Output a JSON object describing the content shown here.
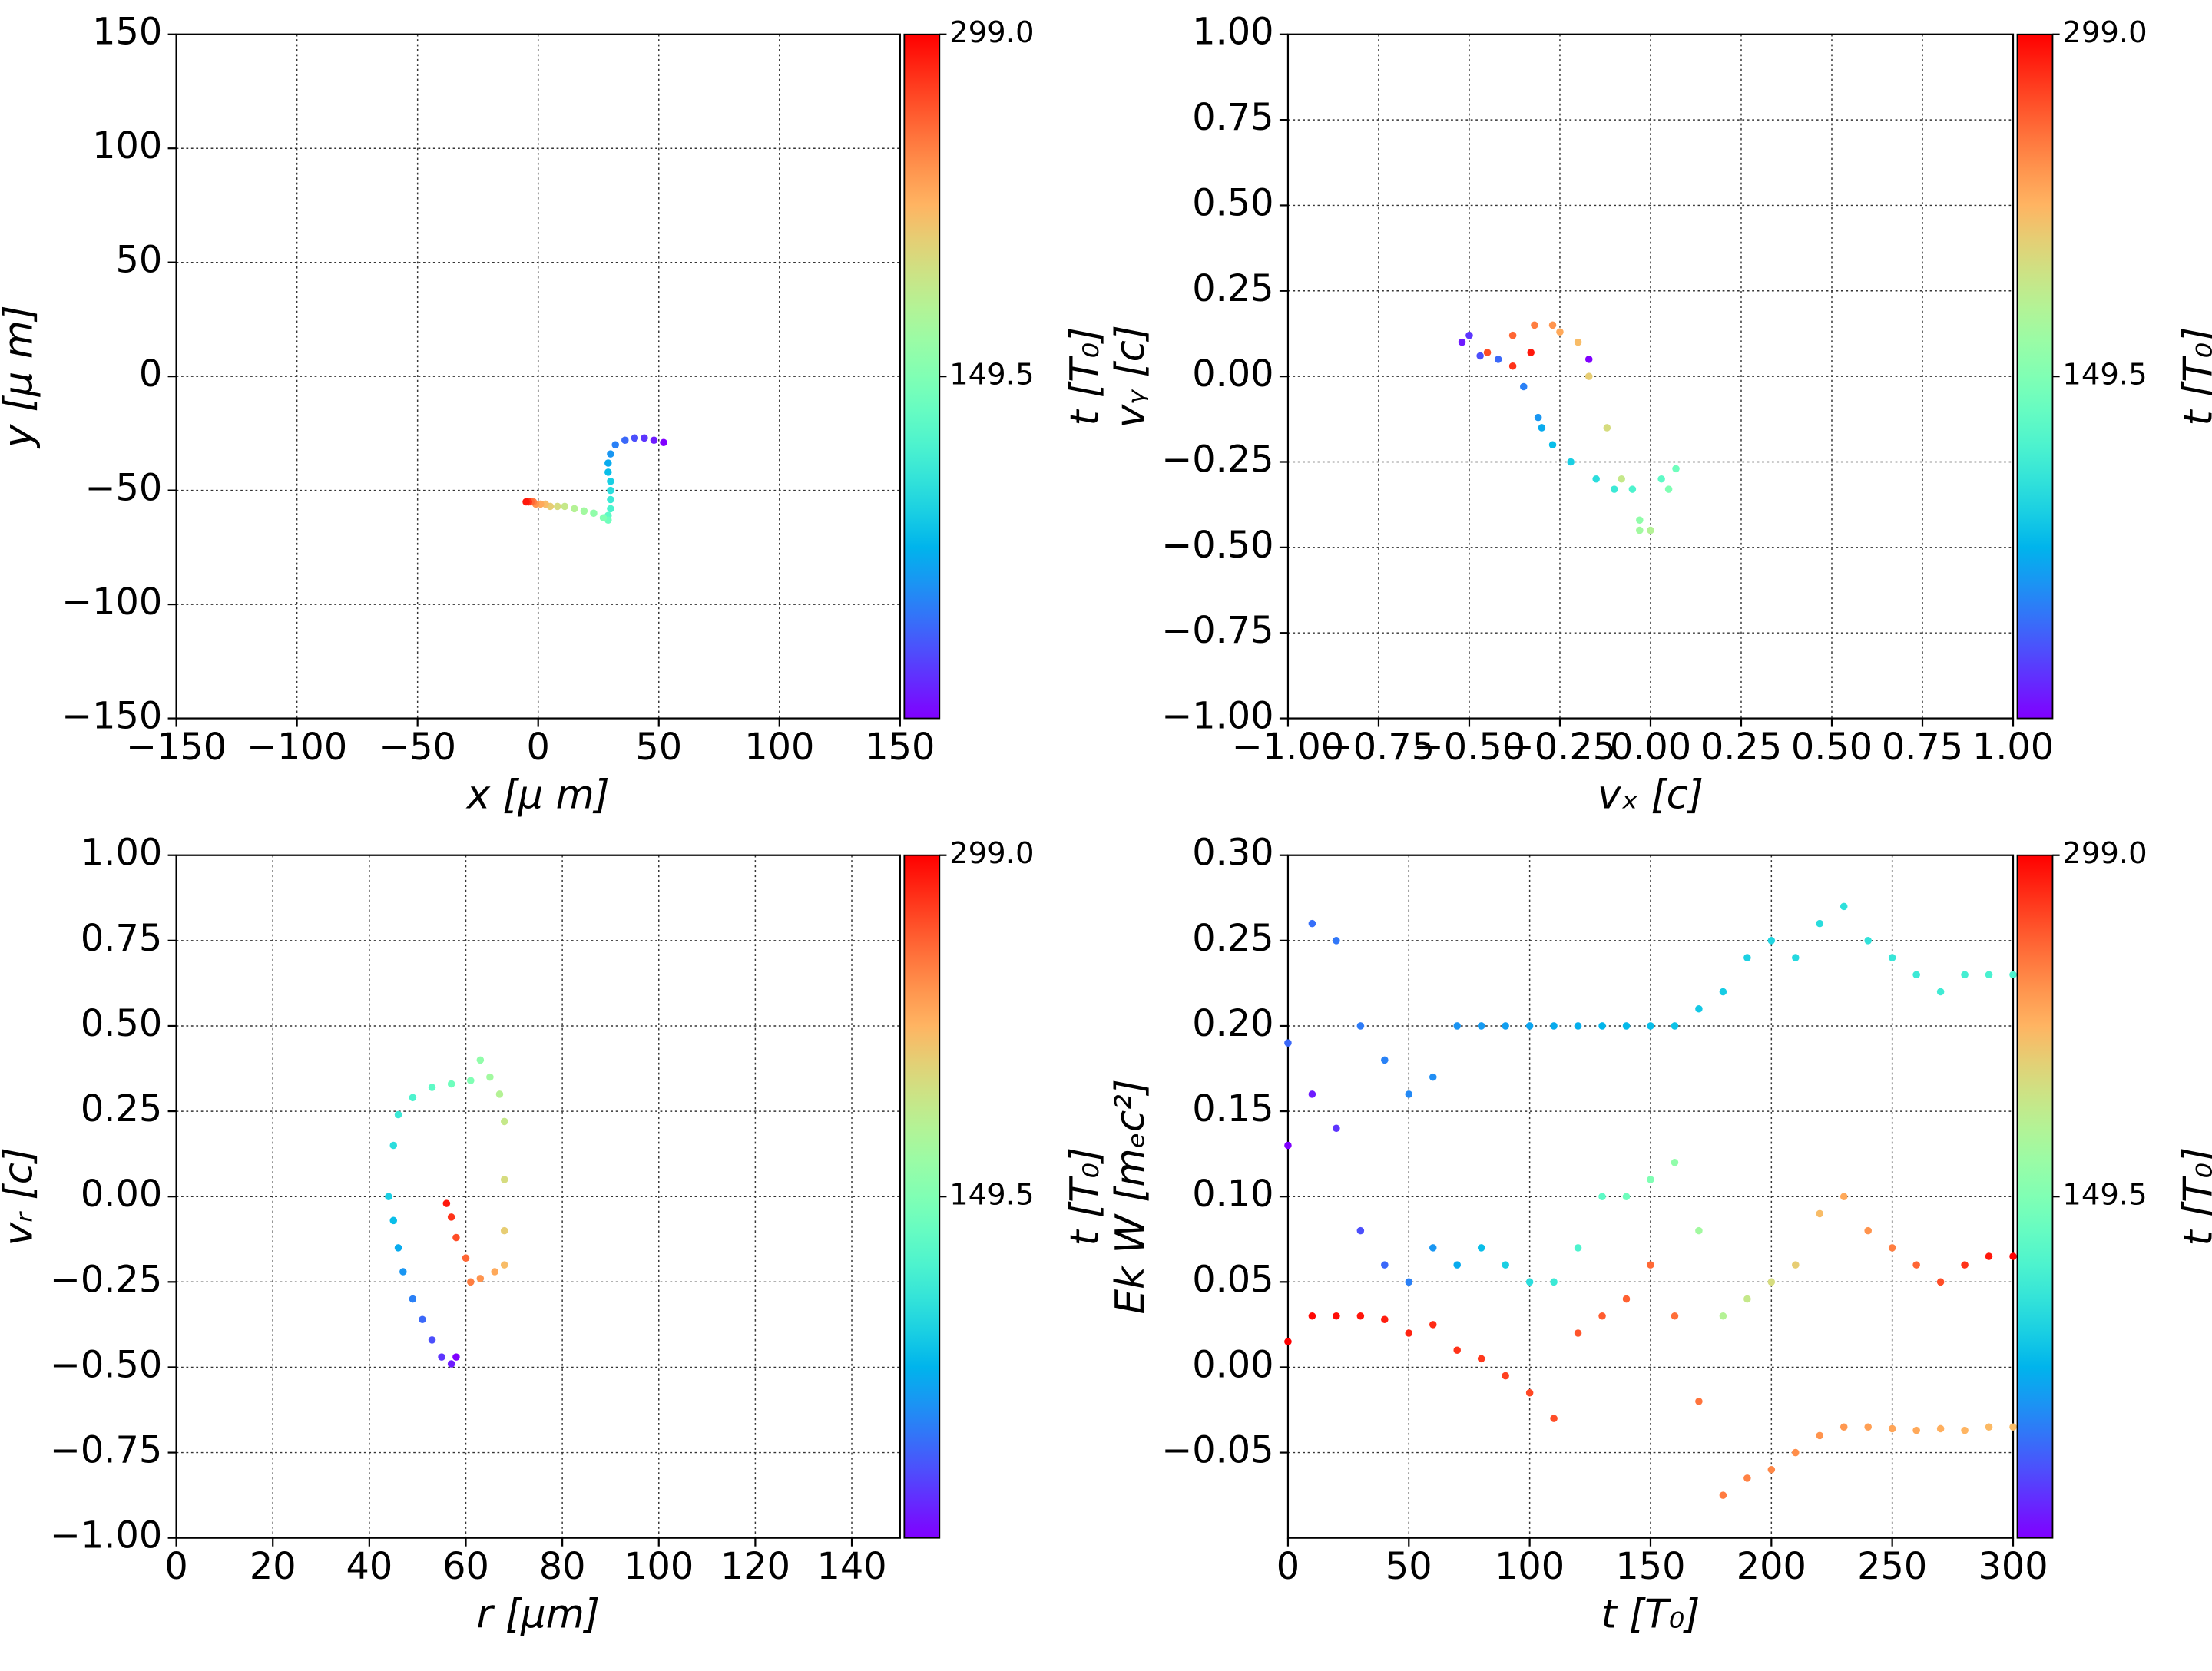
{
  "chart_data": [
    {
      "type": "scatter",
      "xlabel": "x  [μ m]",
      "ylabel": "y  [μ m]",
      "clabel": "t [T₀]",
      "colormap": "rainbow",
      "grid": true,
      "xlim": [
        -150,
        150
      ],
      "ylim": [
        -150,
        150
      ],
      "xticks": [
        {
          "value": -150,
          "label": "−150"
        },
        {
          "value": -100,
          "label": "−100"
        },
        {
          "value": -50,
          "label": "−50"
        },
        0,
        50,
        100,
        150
      ],
      "yticks": [
        {
          "value": -150,
          "label": "−150"
        },
        {
          "value": -100,
          "label": "−100"
        },
        {
          "value": -50,
          "label": "−50"
        },
        0,
        50,
        100,
        150
      ],
      "clim": [
        0,
        299
      ],
      "cticks": [
        {
          "value": 149.5,
          "label": "149.5"
        },
        {
          "value": 299,
          "label": "299.0"
        }
      ],
      "x": [
        52,
        48,
        44,
        40,
        36,
        32,
        30,
        29,
        29,
        30,
        30,
        30,
        30,
        29,
        29,
        27,
        23,
        19,
        15,
        11,
        8,
        5,
        3,
        1,
        -1,
        -2,
        -3,
        -4,
        -4,
        -5
      ],
      "values": [
        -29,
        -28,
        -27,
        -27,
        -28,
        -30,
        -34,
        -38,
        -42,
        -46,
        -50,
        -54,
        -58,
        -61,
        -63,
        -62,
        -60,
        -59,
        -58,
        -57,
        -57,
        -57,
        -56,
        -56,
        -56,
        -55,
        -55,
        -55,
        -55,
        -55
      ],
      "c": [
        0,
        10,
        20,
        30,
        40,
        50,
        60,
        70,
        80,
        90,
        100,
        110,
        120,
        130,
        140,
        150,
        160,
        170,
        180,
        190,
        200,
        210,
        220,
        230,
        240,
        250,
        260,
        270,
        280,
        290
      ]
    },
    {
      "type": "scatter",
      "xlabel": "vₓ [c]",
      "ylabel": "vᵧ [c]",
      "clabel": "t [T₀]",
      "colormap": "rainbow",
      "grid": true,
      "xlim": [
        -1,
        1
      ],
      "ylim": [
        -1,
        1
      ],
      "xticks": [
        {
          "value": -1,
          "label": "−1.00"
        },
        {
          "value": -0.75,
          "label": "−0.75"
        },
        {
          "value": -0.5,
          "label": "−0.50"
        },
        {
          "value": -0.25,
          "label": "−0.25"
        },
        {
          "value": 0,
          "label": "0.00"
        },
        {
          "value": 0.25,
          "label": "0.25"
        },
        {
          "value": 0.5,
          "label": "0.50"
        },
        {
          "value": 0.75,
          "label": "0.75"
        },
        {
          "value": 1,
          "label": "1.00"
        }
      ],
      "yticks": [
        {
          "value": -1,
          "label": "−1.00"
        },
        {
          "value": -0.75,
          "label": "−0.75"
        },
        {
          "value": -0.5,
          "label": "−0.50"
        },
        {
          "value": -0.25,
          "label": "−0.25"
        },
        {
          "value": 0,
          "label": "0.00"
        },
        {
          "value": 0.25,
          "label": "0.25"
        },
        {
          "value": 0.5,
          "label": "0.50"
        },
        {
          "value": 0.75,
          "label": "0.75"
        },
        {
          "value": 1,
          "label": "1.00"
        }
      ],
      "clim": [
        0,
        299
      ],
      "cticks": [
        {
          "value": 149.5,
          "label": "149.5"
        },
        {
          "value": 299,
          "label": "299.0"
        }
      ],
      "x": [
        -0.17,
        -0.52,
        -0.5,
        -0.47,
        -0.42,
        -0.35,
        -0.31,
        -0.3,
        -0.27,
        -0.22,
        -0.15,
        -0.1,
        -0.05,
        0.03,
        0.07,
        0.05,
        -0.03,
        -0.03,
        0.0,
        -0.08,
        -0.12,
        -0.17,
        -0.2,
        -0.25,
        -0.27,
        -0.32,
        -0.38,
        -0.45,
        -0.38,
        -0.33
      ],
      "values": [
        0.05,
        0.1,
        0.12,
        0.06,
        0.05,
        -0.03,
        -0.12,
        -0.15,
        -0.2,
        -0.25,
        -0.3,
        -0.33,
        -0.33,
        -0.3,
        -0.27,
        -0.33,
        -0.42,
        -0.45,
        -0.45,
        -0.3,
        -0.15,
        0.0,
        0.1,
        0.13,
        0.15,
        0.15,
        0.12,
        0.07,
        0.03,
        0.07
      ],
      "c": [
        0,
        10,
        20,
        30,
        40,
        50,
        60,
        70,
        80,
        90,
        100,
        110,
        120,
        130,
        140,
        150,
        160,
        170,
        180,
        190,
        200,
        210,
        220,
        230,
        240,
        250,
        260,
        270,
        280,
        290
      ]
    },
    {
      "type": "scatter",
      "xlabel": "r [μm]",
      "ylabel": "vᵣ [c]",
      "clabel": "t [T₀]",
      "colormap": "rainbow",
      "grid": true,
      "xlim": [
        0,
        150
      ],
      "ylim": [
        -1,
        1
      ],
      "xticks": [
        0,
        20,
        40,
        60,
        80,
        100,
        120,
        140
      ],
      "yticks": [
        {
          "value": -1,
          "label": "−1.00"
        },
        {
          "value": -0.75,
          "label": "−0.75"
        },
        {
          "value": -0.5,
          "label": "−0.50"
        },
        {
          "value": -0.25,
          "label": "−0.25"
        },
        {
          "value": 0,
          "label": "0.00"
        },
        {
          "value": 0.25,
          "label": "0.25"
        },
        {
          "value": 0.5,
          "label": "0.50"
        },
        {
          "value": 0.75,
          "label": "0.75"
        },
        {
          "value": 1,
          "label": "1.00"
        }
      ],
      "clim": [
        0,
        299
      ],
      "cticks": [
        {
          "value": 149.5,
          "label": "149.5"
        },
        {
          "value": 299,
          "label": "299.0"
        }
      ],
      "x": [
        58,
        57,
        55,
        53,
        51,
        49,
        47,
        46,
        45,
        44,
        45,
        46,
        49,
        53,
        57,
        61,
        63,
        65,
        67,
        68,
        68,
        68,
        68,
        66,
        63,
        61,
        60,
        58,
        57,
        56
      ],
      "values": [
        -0.47,
        -0.49,
        -0.47,
        -0.42,
        -0.36,
        -0.3,
        -0.22,
        -0.15,
        -0.07,
        0.0,
        0.15,
        0.24,
        0.29,
        0.32,
        0.33,
        0.34,
        0.4,
        0.35,
        0.3,
        0.22,
        0.05,
        -0.1,
        -0.2,
        -0.22,
        -0.24,
        -0.25,
        -0.18,
        -0.12,
        -0.06,
        -0.02
      ],
      "c": [
        0,
        10,
        20,
        30,
        40,
        50,
        60,
        70,
        80,
        90,
        100,
        110,
        120,
        130,
        140,
        150,
        160,
        170,
        180,
        190,
        200,
        210,
        220,
        230,
        240,
        250,
        260,
        270,
        280,
        290
      ]
    },
    {
      "type": "scatter",
      "xlabel": "t [T₀]",
      "ylabel": "Ek W [mₑc²]",
      "clabel": "t [T₀]",
      "colormap": "rainbow",
      "grid": true,
      "xlim": [
        0,
        300
      ],
      "ylim": [
        -0.1,
        0.3
      ],
      "xticks": [
        0,
        50,
        100,
        150,
        200,
        250,
        300
      ],
      "yticks": [
        {
          "value": -0.05,
          "label": "−0.05"
        },
        {
          "value": 0,
          "label": "0.00"
        },
        {
          "value": 0.05,
          "label": "0.05"
        },
        {
          "value": 0.1,
          "label": "0.10"
        },
        {
          "value": 0.15,
          "label": "0.15"
        },
        {
          "value": 0.2,
          "label": "0.20"
        },
        {
          "value": 0.25,
          "label": "0.25"
        },
        {
          "value": 0.3,
          "label": "0.30"
        }
      ],
      "clim": [
        0,
        299
      ],
      "cticks": [
        {
          "value": 149.5,
          "label": "149.5"
        },
        {
          "value": 299,
          "label": "299.0"
        }
      ],
      "x": [
        0,
        10,
        20,
        30,
        40,
        50,
        60,
        70,
        80,
        90,
        100,
        110,
        120,
        130,
        140,
        150,
        160,
        170,
        180,
        190,
        200,
        210,
        220,
        230,
        240,
        250,
        260,
        270,
        280,
        290,
        300
      ],
      "series": [
        {
          "values": [
            0.19,
            0.26,
            0.25,
            0.2,
            0.18,
            0.16,
            0.17,
            0.2,
            0.2,
            0.2,
            0.2,
            0.2,
            0.2,
            0.2,
            0.2,
            0.2,
            0.2,
            0.21,
            0.22,
            0.24,
            0.25,
            0.24,
            0.26,
            0.27,
            0.25,
            0.24,
            0.23,
            0.22,
            0.23,
            0.23,
            0.23
          ],
          "c": [
            40,
            43,
            46,
            48,
            51,
            54,
            56,
            59,
            62,
            64,
            67,
            70,
            72,
            75,
            78,
            80,
            83,
            86,
            88,
            91,
            94,
            96,
            99,
            102,
            104,
            107,
            110,
            112,
            115,
            118,
            120
          ]
        },
        {
          "values": [
            0.13,
            0.16,
            0.14,
            0.08,
            0.06,
            0.05,
            0.07,
            0.06,
            0.07,
            0.06,
            0.05,
            0.05,
            0.07,
            0.1,
            0.1,
            0.11,
            0.12,
            0.08,
            0.03,
            0.04,
            0.05,
            0.06,
            0.09,
            0.1,
            0.08,
            0.07,
            0.06,
            0.05,
            0.06,
            0.065,
            0.065
          ],
          "c": [
            0,
            10,
            20,
            30,
            40,
            50,
            60,
            70,
            80,
            90,
            100,
            110,
            120,
            130,
            140,
            150,
            160,
            170,
            180,
            190,
            200,
            210,
            220,
            230,
            240,
            250,
            260,
            270,
            280,
            290,
            299
          ]
        },
        {
          "values": [
            0.015,
            0.03,
            0.03,
            0.03,
            0.028,
            0.02,
            0.025,
            0.01,
            0.005,
            -0.005,
            -0.015,
            -0.03,
            0.02,
            0.03,
            0.04,
            0.06,
            0.03,
            -0.02,
            -0.075,
            -0.065,
            -0.06,
            -0.05,
            -0.04,
            -0.035,
            -0.035,
            -0.036,
            -0.037,
            -0.036,
            -0.037,
            -0.035,
            -0.035
          ],
          "c": [
            299,
            296,
            294,
            291,
            288,
            286,
            283,
            280,
            278,
            275,
            272,
            270,
            267,
            264,
            262,
            259,
            256,
            254,
            251,
            248,
            246,
            243,
            240,
            238,
            235,
            232,
            230,
            227,
            224,
            222,
            220
          ]
        }
      ]
    }
  ]
}
